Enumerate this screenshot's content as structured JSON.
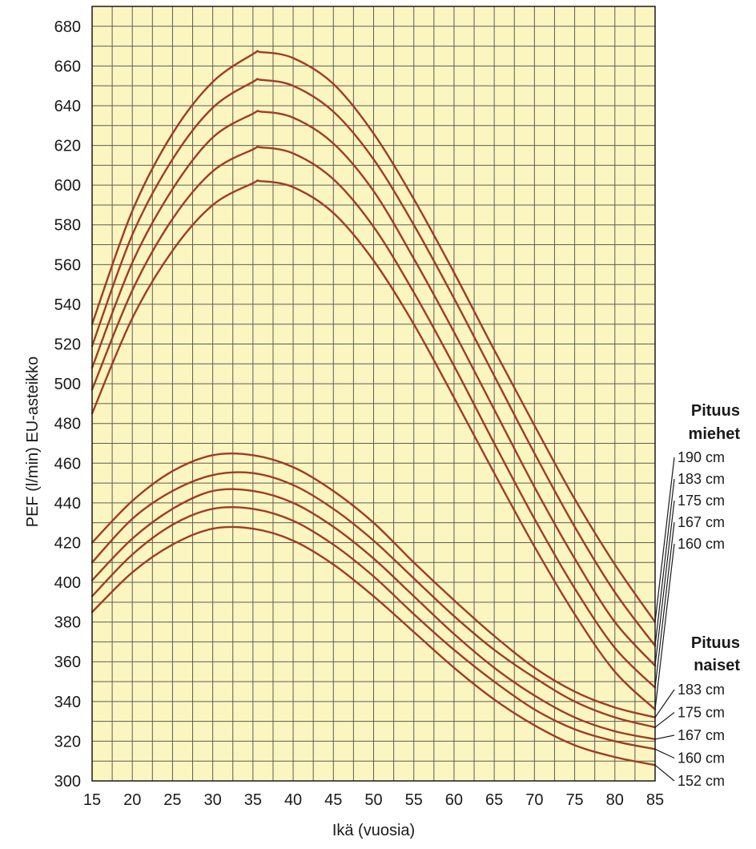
{
  "chart_data": {
    "type": "line",
    "xlabel": "Ikä (vuosia)",
    "ylabel": "PEF (l/min) EU-asteikko",
    "xlim": [
      15,
      85
    ],
    "ylim": [
      300,
      690
    ],
    "x_ticks": [
      15,
      20,
      25,
      30,
      35,
      40,
      45,
      50,
      55,
      60,
      65,
      70,
      75,
      80,
      85
    ],
    "y_ticks": [
      300,
      320,
      340,
      360,
      380,
      400,
      420,
      440,
      460,
      480,
      500,
      520,
      540,
      560,
      580,
      600,
      620,
      640,
      660,
      680
    ],
    "grid": true,
    "grid_step_x": 2.5,
    "grid_step_y": 10,
    "colors": {
      "line": "#a23b25",
      "background": "#fbf6bf",
      "grid": "#5c5c5c"
    },
    "groups": [
      {
        "title": "Pituus\nmiehet",
        "title_lines": [
          "Pituus",
          "miehet"
        ],
        "series": [
          {
            "name": "190 cm",
            "x": [
              15,
              20,
              25,
              30,
              35,
              36,
              40,
              45,
              50,
              55,
              60,
              65,
              70,
              75,
              80,
              85
            ],
            "values": [
              530,
              587,
              626,
              652,
              666,
              667,
              664,
              651,
              626,
              593,
              556,
              517,
              479,
              442,
              409,
              380
            ]
          },
          {
            "name": "183 cm",
            "x": [
              15,
              20,
              25,
              30,
              35,
              36,
              40,
              45,
              50,
              55,
              60,
              65,
              70,
              75,
              80,
              85
            ],
            "values": [
              519,
              575,
              613,
              639,
              652,
              653,
              650,
              637,
              613,
              580,
              543,
              504,
              465,
              428,
              395,
              368
            ]
          },
          {
            "name": "175 cm",
            "x": [
              15,
              20,
              25,
              30,
              35,
              36,
              40,
              45,
              50,
              55,
              60,
              65,
              70,
              75,
              80,
              85
            ],
            "values": [
              508,
              561,
              598,
              624,
              636,
              637,
              634,
              621,
              597,
              563,
              526,
              487,
              448,
              412,
              380,
              358
            ]
          },
          {
            "name": "167 cm",
            "x": [
              15,
              20,
              25,
              30,
              35,
              36,
              40,
              45,
              50,
              55,
              60,
              65,
              70,
              75,
              80,
              85
            ],
            "values": [
              497,
              547,
              583,
              607,
              618,
              619,
              616,
              603,
              579,
              546,
              509,
              470,
              432,
              397,
              367,
              347
            ]
          },
          {
            "name": "160 cm",
            "x": [
              15,
              20,
              25,
              30,
              35,
              36,
              40,
              45,
              50,
              55,
              60,
              65,
              70,
              75,
              80,
              85
            ],
            "values": [
              485,
              533,
              567,
              590,
              601,
              602,
              599,
              586,
              562,
              530,
              493,
              455,
              418,
              384,
              355,
              336
            ]
          }
        ]
      },
      {
        "title": "Pituus\nnaiset",
        "title_lines": [
          "Pituus",
          "naiset"
        ],
        "series": [
          {
            "name": "183 cm",
            "x": [
              15,
              20,
              25,
              30,
              35,
              40,
              45,
              50,
              55,
              60,
              65,
              70,
              75,
              80,
              85
            ],
            "values": [
              420,
              441,
              456,
              464,
              464,
              458,
              446,
              430,
              410,
              391,
              373,
              357,
              345,
              337,
              332
            ]
          },
          {
            "name": "175 cm",
            "x": [
              15,
              20,
              25,
              30,
              35,
              40,
              45,
              50,
              55,
              60,
              65,
              70,
              75,
              80,
              85
            ],
            "values": [
              410,
              432,
              446,
              454,
              455,
              449,
              437,
              421,
              402,
              383,
              366,
              352,
              340,
              332,
              327
            ]
          },
          {
            "name": "167 cm",
            "x": [
              15,
              20,
              25,
              30,
              35,
              40,
              45,
              50,
              55,
              60,
              65,
              70,
              75,
              80,
              85
            ],
            "values": [
              401,
              422,
              437,
              446,
              446,
              440,
              428,
              412,
              393,
              374,
              357,
              343,
              332,
              325,
              321
            ]
          },
          {
            "name": "160 cm",
            "x": [
              15,
              20,
              25,
              30,
              35,
              40,
              45,
              50,
              55,
              60,
              65,
              70,
              75,
              80,
              85
            ],
            "values": [
              393,
              414,
              429,
              437,
              437,
              431,
              419,
              403,
              384,
              366,
              350,
              336,
              326,
              320,
              316
            ]
          },
          {
            "name": "152 cm",
            "x": [
              15,
              20,
              25,
              30,
              35,
              40,
              45,
              50,
              55,
              60,
              65,
              70,
              75,
              80,
              85
            ],
            "values": [
              385,
              405,
              419,
              427,
              427,
              421,
              409,
              393,
              375,
              357,
              341,
              328,
              318,
              312,
              308
            ]
          }
        ]
      }
    ]
  }
}
